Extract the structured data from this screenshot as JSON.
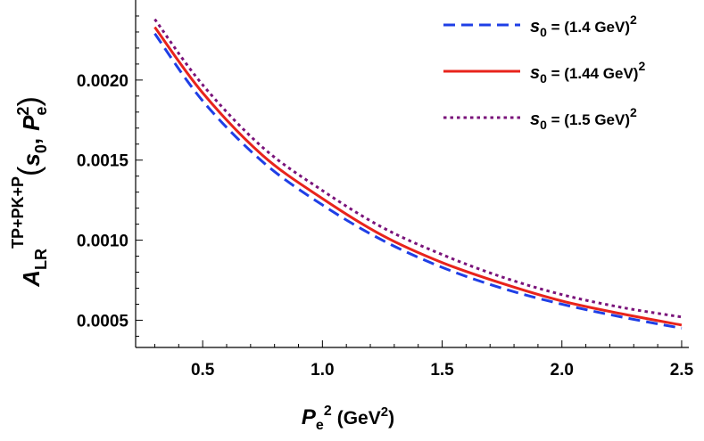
{
  "chart_data": {
    "type": "line",
    "xlabel": {
      "symbol": "P",
      "sub": "e",
      "sup": "2",
      "unit_pre": "(GeV",
      "unit_sup": "2",
      "unit_post": ")"
    },
    "ylabel": {
      "symbol": "A",
      "sub": "LR",
      "sup": "TP+PK+P",
      "args_open": "(",
      "arg1": "s",
      "arg1_sub": "0",
      "comma": ",",
      "arg2": "P",
      "arg2_sub": "e",
      "arg2_sup": "2",
      "args_close": ")"
    },
    "xlim": [
      0.22,
      2.53
    ],
    "ylim": [
      0.00033,
      0.0025
    ],
    "x_ticks": [
      0.5,
      1.0,
      1.5,
      2.0,
      2.5
    ],
    "x_tick_labels": [
      "0.5",
      "1.0",
      "1.5",
      "2.0",
      "2.5"
    ],
    "y_ticks": [
      0.0005,
      0.001,
      0.0015,
      0.002
    ],
    "y_tick_labels": [
      "0.0005",
      "0.0010",
      "0.0015",
      "0.0020"
    ],
    "grid": false,
    "legend_position": "top-right",
    "series": [
      {
        "name": "s0 = (1.4 GeV)2",
        "legend": {
          "s": "s",
          "sub": "0",
          "text": " = (1.4 GeV)",
          "sup": "2"
        },
        "color": "#1f3fe6",
        "style": "dashed",
        "x": [
          0.3,
          0.5,
          0.75,
          1.0,
          1.25,
          1.5,
          1.75,
          2.0,
          2.25,
          2.5
        ],
        "y": [
          0.00229,
          0.00187,
          0.00149,
          0.00122,
          0.001,
          0.00083,
          0.0007,
          0.0006,
          0.00052,
          0.00045
        ]
      },
      {
        "name": "s0 = (1.44 GeV)2",
        "legend": {
          "s": "s",
          "sub": "0",
          "text": " = (1.44 GeV)",
          "sup": "2"
        },
        "color": "#e8241c",
        "style": "solid",
        "x": [
          0.3,
          0.5,
          0.75,
          1.0,
          1.25,
          1.5,
          1.75,
          2.0,
          2.25,
          2.5
        ],
        "y": [
          0.00233,
          0.00192,
          0.00153,
          0.00126,
          0.00103,
          0.00086,
          0.00073,
          0.00062,
          0.00054,
          0.00047
        ]
      },
      {
        "name": "s0 = (1.5 GeV)2",
        "legend": {
          "s": "s",
          "sub": "0",
          "text": " = (1.5 GeV)",
          "sup": "2"
        },
        "color": "#7a137a",
        "style": "dotted",
        "x": [
          0.3,
          0.5,
          0.75,
          1.0,
          1.25,
          1.5,
          1.75,
          2.0,
          2.25,
          2.5
        ],
        "y": [
          0.00238,
          0.00197,
          0.00158,
          0.00131,
          0.00108,
          0.00091,
          0.00077,
          0.00066,
          0.00058,
          0.00052
        ]
      }
    ]
  }
}
